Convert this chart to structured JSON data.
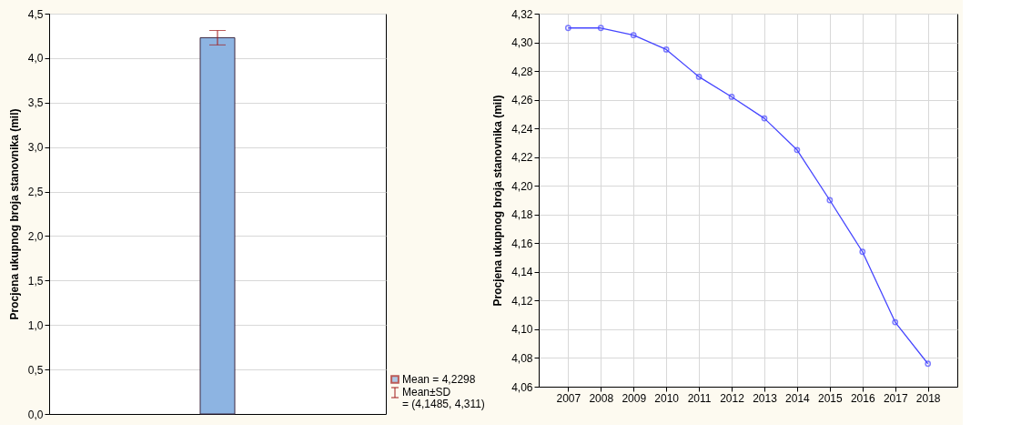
{
  "chart_data": [
    {
      "type": "bar",
      "ylabel": "Procjena ukupnog broja stanovnika (mil)",
      "categories": [
        null
      ],
      "series": [
        {
          "name": "Mean = 4,2298",
          "color": "#8db4e2",
          "values": [
            4.2298
          ],
          "errors": [
            [
              4.1485,
              4.311
            ]
          ]
        }
      ],
      "ylim": [
        0,
        4.5
      ],
      "yticks": [
        {
          "value": 0,
          "label": "0,0"
        },
        {
          "value": 0.5,
          "label": "0,5"
        },
        {
          "value": 1,
          "label": "1,0"
        },
        {
          "value": 1.5,
          "label": "1,5"
        },
        {
          "value": 2,
          "label": "2,0"
        },
        {
          "value": 2.5,
          "label": "2,5"
        },
        {
          "value": 3,
          "label": "3,0"
        },
        {
          "value": 3.5,
          "label": "3,5"
        },
        {
          "value": 4,
          "label": "4,0"
        },
        {
          "value": 4.5,
          "label": "4,5"
        }
      ],
      "grid": "y",
      "tick_labels": "y",
      "legend": "bottom right",
      "annotations": [
        "Mean±SD",
        "= (4,1485, 4,311)"
      ]
    },
    {
      "type": "line",
      "ylabel": "Procjena ukupnog broja stanovnika (mil)",
      "categories": [
        "2007",
        "2008",
        "2009",
        "2010",
        "2011",
        "2012",
        "2013",
        "2014",
        "2015",
        "2016",
        "2017",
        "2018"
      ],
      "series": [
        {
          "color": "#4646ff",
          "values": [
            4.31,
            4.31,
            4.305,
            4.295,
            4.276,
            4.262,
            4.247,
            4.225,
            4.19,
            4.154,
            4.105,
            4.076
          ]
        }
      ],
      "ylim": [
        4.06,
        4.32
      ],
      "yticks": [
        {
          "value": 4.06,
          "label": "4,06"
        },
        {
          "value": 4.08,
          "label": "4,08"
        },
        {
          "value": 4.1,
          "label": "4,10"
        },
        {
          "value": 4.12,
          "label": "4,12"
        },
        {
          "value": 4.14,
          "label": "4,14"
        },
        {
          "value": 4.16,
          "label": "4,16"
        },
        {
          "value": 4.18,
          "label": "4,18"
        },
        {
          "value": 4.2,
          "label": "4,20"
        },
        {
          "value": 4.22,
          "label": "4,22"
        },
        {
          "value": 4.24,
          "label": "4,24"
        },
        {
          "value": 4.26,
          "label": "4,26"
        },
        {
          "value": 4.28,
          "label": "4,28"
        },
        {
          "value": 4.3,
          "label": "4,30"
        },
        {
          "value": 4.32,
          "label": "4,32"
        }
      ],
      "grid": true,
      "marker": "circle"
    }
  ]
}
